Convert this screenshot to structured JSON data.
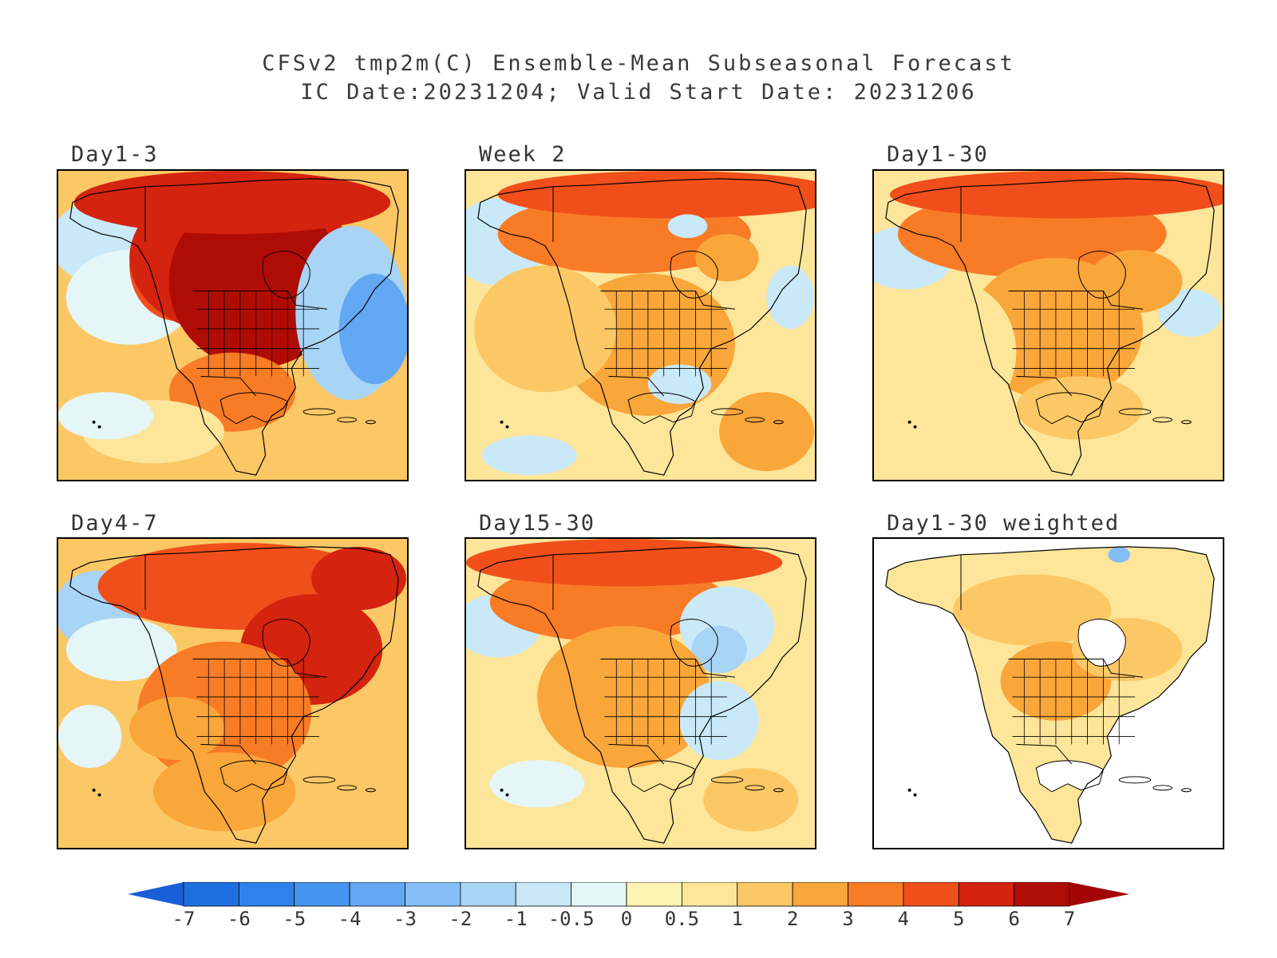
{
  "title": {
    "line1": "CFSv2 tmp2m(C) Ensemble-Mean Subseasonal Forecast",
    "line2": "IC Date:20231204; Valid Start Date: 20231206"
  },
  "panels": [
    {
      "id": "p1",
      "label": "Day1-3",
      "pattern": "d13"
    },
    {
      "id": "p2",
      "label": "Week 2",
      "pattern": "w2"
    },
    {
      "id": "p3",
      "label": "Day1-30",
      "pattern": "d130"
    },
    {
      "id": "p4",
      "label": "Day4-7",
      "pattern": "d47"
    },
    {
      "id": "p5",
      "label": "Day15-30",
      "pattern": "d1530"
    },
    {
      "id": "p6",
      "label": "Day1-30 weighted",
      "pattern": "weighted"
    }
  ],
  "legend": {
    "labels": [
      "-7",
      "-6",
      "-5",
      "-4",
      "-3",
      "-2",
      "-1",
      "-0.5",
      "0",
      "0.5",
      "1",
      "2",
      "3",
      "4",
      "5",
      "6",
      "7"
    ],
    "colors": [
      "#1e6fe0",
      "#2f82ea",
      "#4595f0",
      "#63a8f4",
      "#86bdf7",
      "#a8d4f6",
      "#c9e9f8",
      "#e5f6f8",
      "#fdf3b3",
      "#fde59a",
      "#fbc865",
      "#f9a63a",
      "#f87c26",
      "#f04f1b",
      "#d4230f",
      "#b00c06"
    ],
    "low_color": "#1a5fd8",
    "high_color": "#a30505"
  }
}
